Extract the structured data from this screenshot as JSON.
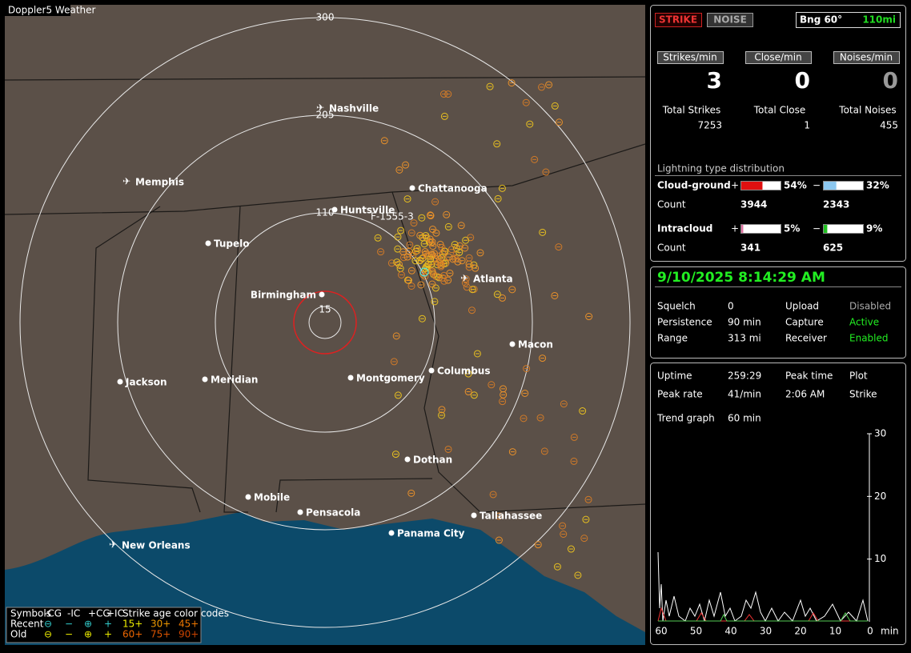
{
  "window_title": "Doppler5 Weather",
  "map": {
    "range_labels": [
      "300",
      "205",
      "110",
      "15"
    ],
    "track_label": "F-1555-3",
    "cities": [
      "Nashville",
      "Memphis",
      "Chattanooga",
      "Huntsville",
      "Tupelo",
      "Atlanta",
      "Birmingham",
      "Macon",
      "Jackson",
      "Meridian",
      "Montgomery",
      "Columbus",
      "Dothan",
      "Mobile",
      "Pensacola",
      "Tallahassee",
      "Panama City",
      "New Orleans"
    ],
    "legend": {
      "symbols": "Symbols",
      "types": [
        "-CG",
        "-IC",
        "+CG",
        "+IC"
      ],
      "age_title": "Strike age color codes",
      "recent": "Recent",
      "old": "Old",
      "recent_ages": [
        "15+",
        "30+",
        "45+"
      ],
      "old_ages": [
        "60+",
        "75+",
        "90+"
      ]
    }
  },
  "status": {
    "strike_button": "STRIKE",
    "noise_button": "NOISE",
    "bearing": "Bng 60°",
    "distance": "110mi",
    "rates": [
      {
        "label": "Strikes/min",
        "value": 3
      },
      {
        "label": "Close/min",
        "value": 0
      },
      {
        "label": "Noises/min",
        "value": 0
      }
    ],
    "totals": [
      {
        "label": "Total Strikes",
        "value": 7253
      },
      {
        "label": "Total Close",
        "value": 1
      },
      {
        "label": "Total Noises",
        "value": 455
      }
    ],
    "distribution": {
      "title": "Lightning type distribution",
      "count_label": "Count",
      "rows": [
        {
          "name": "Cloud-ground",
          "plus": "+",
          "minus": "−",
          "plus_pct": {
            "value": 54,
            "label": "54%"
          },
          "minus_pct": {
            "value": 32,
            "label": "32%"
          },
          "plus_count": 3944,
          "minus_count": 2343
        },
        {
          "name": "Intracloud",
          "plus": "+",
          "minus": "−",
          "plus_pct": {
            "value": 5,
            "label": "5%"
          },
          "minus_pct": {
            "value": 9,
            "label": "9%"
          },
          "plus_count": 341,
          "minus_count": 625
        }
      ]
    }
  },
  "settings": {
    "datetime": "9/10/2025 8:14:29 AM",
    "rows": [
      [
        "Squelch",
        "0",
        "Upload",
        "Disabled"
      ],
      [
        "Persistence",
        "90 min",
        "Capture",
        "Active"
      ],
      [
        "Range",
        "313 mi",
        "Receiver",
        "Enabled"
      ]
    ]
  },
  "stats": {
    "rows": [
      [
        "Uptime",
        "259:29",
        "Peak time",
        "Plot"
      ],
      [
        "Peak rate",
        "41/min",
        "2:06 AM",
        "Strike"
      ]
    ],
    "trend_label": "Trend graph",
    "trend_window": "60 min",
    "trend": {
      "ylim": [
        0,
        30
      ],
      "yticks": [
        10,
        20,
        30
      ],
      "xlim": [
        60,
        0
      ],
      "xticks": [
        60,
        50,
        40,
        30,
        20,
        10,
        0
      ],
      "x_unit": "min"
    }
  }
}
